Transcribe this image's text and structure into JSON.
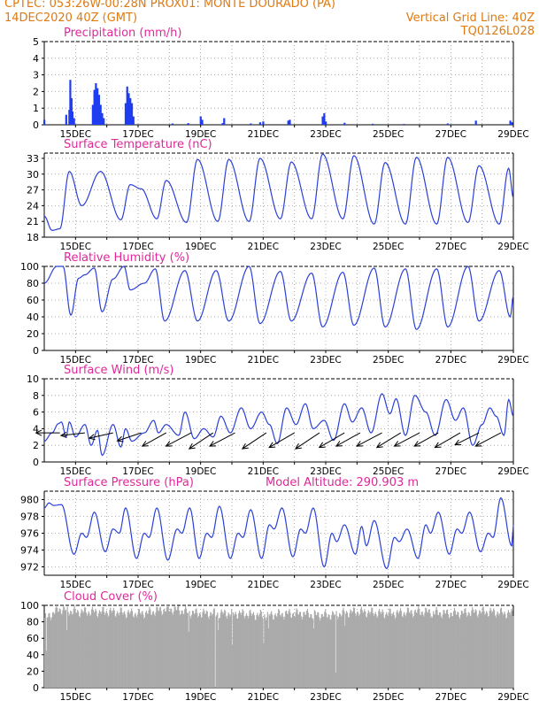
{
  "header": {
    "line1_left": "CPTEC:   053:26W-00:28N   PROX01: MONTE DOURADO (PA)",
    "line2_left": "14DEC2020 40Z (GMT)",
    "line2_right": "Vertical Grid Line: 40Z",
    "line3_right": "TQ0126L028"
  },
  "colors": {
    "accent": "#e07a10",
    "title": "#e0289a",
    "line": "#2b40d8",
    "bar": "#1f3cf0",
    "cloud": "#aaaaaa"
  },
  "x_dates": [
    "15DEC",
    "17DEC",
    "19DEC",
    "21DEC",
    "23DEC",
    "25DEC",
    "27DEC",
    "29DEC"
  ],
  "chart_data": [
    {
      "type": "bar",
      "title": "Precipitation (mm/h)",
      "ylim": [
        0,
        5
      ],
      "yticks": [
        "0",
        "1",
        "2",
        "3",
        "4",
        "5"
      ],
      "x_range_days": [
        14.0,
        29.0
      ],
      "points": [
        [
          14.0,
          0.3
        ],
        [
          14.7,
          0.6
        ],
        [
          14.8,
          0.9
        ],
        [
          14.83,
          2.7
        ],
        [
          14.87,
          1.6
        ],
        [
          14.9,
          0.8
        ],
        [
          14.95,
          0.4
        ],
        [
          15.55,
          1.2
        ],
        [
          15.6,
          2.1
        ],
        [
          15.65,
          2.5
        ],
        [
          15.7,
          2.2
        ],
        [
          15.75,
          1.8
        ],
        [
          15.8,
          1.2
        ],
        [
          15.85,
          0.7
        ],
        [
          15.9,
          0.4
        ],
        [
          16.6,
          1.3
        ],
        [
          16.65,
          2.3
        ],
        [
          16.7,
          1.9
        ],
        [
          16.75,
          1.6
        ],
        [
          16.8,
          1.3
        ],
        [
          16.85,
          0.5
        ],
        [
          18.1,
          0.08
        ],
        [
          18.6,
          0.1
        ],
        [
          19.0,
          0.5
        ],
        [
          19.05,
          0.3
        ],
        [
          19.7,
          0.1
        ],
        [
          19.75,
          0.4
        ],
        [
          20.6,
          0.08
        ],
        [
          20.9,
          0.15
        ],
        [
          21.0,
          0.2
        ],
        [
          21.8,
          0.25
        ],
        [
          21.85,
          0.3
        ],
        [
          22.9,
          0.5
        ],
        [
          22.95,
          0.7
        ],
        [
          23.0,
          0.2
        ],
        [
          23.6,
          0.12
        ],
        [
          24.5,
          0.06
        ],
        [
          25.5,
          0.05
        ],
        [
          26.9,
          0.08
        ],
        [
          27.8,
          0.25
        ],
        [
          28.9,
          0.25
        ],
        [
          28.95,
          0.15
        ]
      ]
    },
    {
      "type": "line",
      "title": "Surface Temperature (nC)",
      "ylim": [
        18,
        34
      ],
      "yticks": [
        "18",
        "21",
        "24",
        "27",
        "30",
        "33"
      ],
      "peaks": [
        [
          14.0,
          22.0
        ],
        [
          14.25,
          19.3
        ],
        [
          14.5,
          19.6
        ],
        [
          14.8,
          30.5
        ],
        [
          15.2,
          24.0
        ],
        [
          15.8,
          30.5
        ],
        [
          16.45,
          21.3
        ],
        [
          16.75,
          28.0
        ],
        [
          17.1,
          27.2
        ],
        [
          17.6,
          21.5
        ],
        [
          17.9,
          28.8
        ],
        [
          18.55,
          20.8
        ],
        [
          18.9,
          32.8
        ],
        [
          19.55,
          21.0
        ],
        [
          19.9,
          32.8
        ],
        [
          20.55,
          21.0
        ],
        [
          20.9,
          33.0
        ],
        [
          21.55,
          21.5
        ],
        [
          21.9,
          32.3
        ],
        [
          22.55,
          21.5
        ],
        [
          22.9,
          33.8
        ],
        [
          23.55,
          21.5
        ],
        [
          23.9,
          33.5
        ],
        [
          24.55,
          20.5
        ],
        [
          24.9,
          32.2
        ],
        [
          25.55,
          20.5
        ],
        [
          25.9,
          33.2
        ],
        [
          26.55,
          20.5
        ],
        [
          26.9,
          33.2
        ],
        [
          27.55,
          20.8
        ],
        [
          27.9,
          31.6
        ],
        [
          28.55,
          20.5
        ],
        [
          28.85,
          31.1
        ],
        [
          29.0,
          25.5
        ]
      ]
    },
    {
      "type": "line",
      "title": "Relative Humidity (%)",
      "ylim": [
        0,
        100
      ],
      "yticks": [
        "0",
        "20",
        "40",
        "60",
        "80",
        "100"
      ],
      "peaks": [
        [
          14.0,
          80
        ],
        [
          14.4,
          100
        ],
        [
          14.6,
          100
        ],
        [
          14.85,
          42
        ],
        [
          15.1,
          86
        ],
        [
          15.3,
          90
        ],
        [
          15.6,
          98
        ],
        [
          15.85,
          46
        ],
        [
          16.2,
          85
        ],
        [
          16.55,
          100
        ],
        [
          16.75,
          72
        ],
        [
          17.2,
          80
        ],
        [
          17.55,
          97
        ],
        [
          17.85,
          35
        ],
        [
          18.5,
          95
        ],
        [
          18.9,
          35
        ],
        [
          19.5,
          95
        ],
        [
          19.9,
          35
        ],
        [
          20.55,
          100
        ],
        [
          20.9,
          32
        ],
        [
          21.55,
          94
        ],
        [
          21.9,
          35
        ],
        [
          22.55,
          92
        ],
        [
          22.9,
          28
        ],
        [
          23.55,
          93
        ],
        [
          23.9,
          30
        ],
        [
          24.55,
          98
        ],
        [
          24.9,
          28
        ],
        [
          25.55,
          97
        ],
        [
          25.9,
          25
        ],
        [
          26.55,
          97
        ],
        [
          26.9,
          28
        ],
        [
          27.55,
          100
        ],
        [
          27.9,
          35
        ],
        [
          28.55,
          95
        ],
        [
          28.9,
          40
        ],
        [
          29.0,
          65
        ]
      ]
    },
    {
      "type": "line",
      "title": "Surface Wind (m/s)",
      "ylim": [
        0,
        10
      ],
      "yticks": [
        "0",
        "2",
        "4",
        "6",
        "8",
        "10"
      ],
      "peaks": [
        [
          14.0,
          2.5
        ],
        [
          14.25,
          3.5
        ],
        [
          14.45,
          4.6
        ],
        [
          14.55,
          4.8
        ],
        [
          14.7,
          3.0
        ],
        [
          14.8,
          4.8
        ],
        [
          15.0,
          3.0
        ],
        [
          15.3,
          4.5
        ],
        [
          15.5,
          2.0
        ],
        [
          15.7,
          3.8
        ],
        [
          15.85,
          0.8
        ],
        [
          16.2,
          4.5
        ],
        [
          16.45,
          1.8
        ],
        [
          16.6,
          4.0
        ],
        [
          16.8,
          2.5
        ],
        [
          17.2,
          3.5
        ],
        [
          17.5,
          5.0
        ],
        [
          17.65,
          3.5
        ],
        [
          17.9,
          4.5
        ],
        [
          18.3,
          3.2
        ],
        [
          18.5,
          6.0
        ],
        [
          18.8,
          2.8
        ],
        [
          19.1,
          4.0
        ],
        [
          19.4,
          3.0
        ],
        [
          19.65,
          5.5
        ],
        [
          19.95,
          3.5
        ],
        [
          20.3,
          6.5
        ],
        [
          20.6,
          4.0
        ],
        [
          20.95,
          6.0
        ],
        [
          21.2,
          4.5
        ],
        [
          21.45,
          2.2
        ],
        [
          21.75,
          6.5
        ],
        [
          22.05,
          4.5
        ],
        [
          22.35,
          7.0
        ],
        [
          22.6,
          4.0
        ],
        [
          22.95,
          5.0
        ],
        [
          23.25,
          2.6
        ],
        [
          23.6,
          7.0
        ],
        [
          23.85,
          4.8
        ],
        [
          24.15,
          6.5
        ],
        [
          24.45,
          3.5
        ],
        [
          24.8,
          8.2
        ],
        [
          25.05,
          5.8
        ],
        [
          25.25,
          7.6
        ],
        [
          25.55,
          3.2
        ],
        [
          25.85,
          8.0
        ],
        [
          26.2,
          6.0
        ],
        [
          26.5,
          3.2
        ],
        [
          26.85,
          7.5
        ],
        [
          27.15,
          5.0
        ],
        [
          27.4,
          6.5
        ],
        [
          27.7,
          2.0
        ],
        [
          28.0,
          4.5
        ],
        [
          28.25,
          6.5
        ],
        [
          28.45,
          5.5
        ],
        [
          28.7,
          3.2
        ],
        [
          28.85,
          7.5
        ],
        [
          29.0,
          5.5
        ]
      ],
      "arrows": [
        [
          14.5,
          -0.9,
          0.0
        ],
        [
          15.3,
          -0.9,
          -0.1
        ],
        [
          16.2,
          -0.9,
          -0.2
        ],
        [
          17.1,
          -0.9,
          -0.3
        ],
        [
          17.9,
          -0.9,
          -0.5
        ],
        [
          18.7,
          -0.95,
          -0.5
        ],
        [
          19.4,
          -0.9,
          -0.6
        ],
        [
          20.1,
          -0.95,
          -0.5
        ],
        [
          21.1,
          -0.9,
          -0.6
        ],
        [
          22.0,
          -0.95,
          -0.55
        ],
        [
          22.8,
          -0.9,
          -0.6
        ],
        [
          23.6,
          -0.95,
          -0.55
        ],
        [
          24.1,
          -0.9,
          -0.5
        ],
        [
          24.8,
          -0.95,
          -0.5
        ],
        [
          25.4,
          -0.9,
          -0.55
        ],
        [
          26.0,
          -0.95,
          -0.5
        ],
        [
          26.6,
          -0.9,
          -0.5
        ],
        [
          27.3,
          -0.95,
          -0.55
        ],
        [
          27.9,
          -0.9,
          -0.45
        ],
        [
          28.6,
          -0.95,
          -0.5
        ]
      ]
    },
    {
      "type": "line",
      "title": "Surface Pressure (hPa)",
      "subtitle": "Model Altitude: 290.903 m",
      "ylim": [
        971,
        981
      ],
      "yticks": [
        "972",
        "974",
        "976",
        "978",
        "980"
      ],
      "peaks": [
        [
          14.0,
          979.0
        ],
        [
          14.15,
          979.6
        ],
        [
          14.3,
          979.3
        ],
        [
          14.55,
          979.4
        ],
        [
          14.95,
          973.5
        ],
        [
          15.2,
          976.0
        ],
        [
          15.35,
          975.5
        ],
        [
          15.6,
          978.5
        ],
        [
          15.95,
          973.8
        ],
        [
          16.2,
          976.5
        ],
        [
          16.4,
          976.0
        ],
        [
          16.6,
          979.0
        ],
        [
          16.95,
          973.0
        ],
        [
          17.2,
          976.0
        ],
        [
          17.35,
          975.5
        ],
        [
          17.6,
          979.0
        ],
        [
          17.95,
          972.8
        ],
        [
          18.25,
          976.5
        ],
        [
          18.4,
          976.0
        ],
        [
          18.65,
          979.0
        ],
        [
          18.95,
          973.0
        ],
        [
          19.2,
          976.0
        ],
        [
          19.35,
          975.5
        ],
        [
          19.6,
          979.2
        ],
        [
          19.95,
          973.0
        ],
        [
          20.2,
          976.0
        ],
        [
          20.35,
          975.5
        ],
        [
          20.6,
          978.8
        ],
        [
          20.95,
          973.0
        ],
        [
          21.2,
          977.0
        ],
        [
          21.35,
          976.5
        ],
        [
          21.6,
          979.0
        ],
        [
          21.95,
          973.2
        ],
        [
          22.2,
          976.5
        ],
        [
          22.35,
          976.0
        ],
        [
          22.6,
          979.0
        ],
        [
          22.95,
          972.0
        ],
        [
          23.2,
          976.0
        ],
        [
          23.35,
          975.0
        ],
        [
          23.6,
          977.0
        ],
        [
          23.95,
          973.5
        ],
        [
          24.15,
          976.8
        ],
        [
          24.3,
          974.5
        ],
        [
          24.55,
          977.5
        ],
        [
          24.95,
          971.8
        ],
        [
          25.2,
          975.5
        ],
        [
          25.35,
          975.0
        ],
        [
          25.6,
          976.5
        ],
        [
          25.95,
          973.0
        ],
        [
          26.2,
          977.0
        ],
        [
          26.35,
          976.0
        ],
        [
          26.6,
          978.5
        ],
        [
          26.95,
          973.5
        ],
        [
          27.2,
          976.5
        ],
        [
          27.35,
          976.0
        ],
        [
          27.6,
          978.5
        ],
        [
          27.95,
          973.8
        ],
        [
          28.2,
          976.0
        ],
        [
          28.35,
          975.5
        ],
        [
          28.6,
          980.2
        ],
        [
          28.95,
          974.5
        ],
        [
          29.0,
          977.0
        ]
      ]
    },
    {
      "type": "bar",
      "title": "Cloud Cover (%)",
      "ylim": [
        0,
        100
      ],
      "yticks": [
        "0",
        "20",
        "40",
        "60",
        "80",
        "100"
      ],
      "baseline": [
        [
          14.0,
          85
        ],
        [
          14.5,
          95
        ],
        [
          15.0,
          92
        ],
        [
          16.0,
          92
        ],
        [
          17.0,
          90
        ],
        [
          18.0,
          95
        ],
        [
          19.0,
          90
        ],
        [
          20.0,
          90
        ],
        [
          21.0,
          88
        ],
        [
          22.0,
          90
        ],
        [
          23.0,
          88
        ],
        [
          24.0,
          92
        ],
        [
          25.0,
          90
        ],
        [
          26.0,
          92
        ],
        [
          27.0,
          90
        ],
        [
          28.0,
          92
        ],
        [
          29.0,
          90
        ]
      ],
      "dips": [
        [
          14.05,
          45
        ],
        [
          14.7,
          70
        ],
        [
          18.6,
          68
        ],
        [
          19.45,
          0
        ],
        [
          19.55,
          70
        ],
        [
          20.0,
          52
        ],
        [
          21.0,
          54
        ],
        [
          21.15,
          72
        ],
        [
          22.6,
          72
        ],
        [
          23.3,
          18
        ],
        [
          23.6,
          75
        ],
        [
          26.4,
          85
        ]
      ]
    }
  ]
}
